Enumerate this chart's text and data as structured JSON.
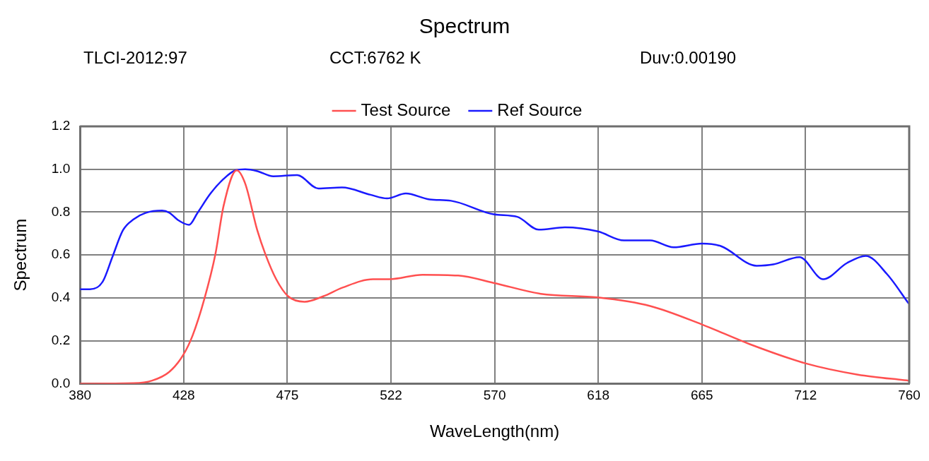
{
  "chart_data": {
    "type": "line",
    "title": "Spectrum",
    "annotations": [
      "TLCI-2012:97",
      "CCT:6762 K",
      "Duv:0.00190"
    ],
    "xlabel": "WaveLength(nm)",
    "ylabel": "Spectrum",
    "xlim": [
      380,
      760
    ],
    "xticks": [
      380,
      {
        "value": 427.5,
        "label": "428"
      },
      475,
      {
        "value": 522.5,
        "label": "522"
      },
      570,
      {
        "value": 617.5,
        "label": "618"
      },
      665,
      {
        "value": 712.5,
        "label": "712"
      },
      760
    ],
    "ylim": [
      0,
      1.2
    ],
    "yticks": [
      {
        "value": 0,
        "label": "0.0"
      },
      0.2,
      0.4,
      0.6,
      0.8,
      {
        "value": 1,
        "label": "1.0"
      },
      1.2
    ],
    "grid": true,
    "legend": "top",
    "series": [
      {
        "name": "Test Source",
        "color": "#ff5050",
        "x": [
          380,
          404.6,
          413,
          420.8,
          427.3,
          431.6,
          437,
          442,
          445.8,
          451.8,
          455.7,
          461.2,
          465,
          469.9,
          475.3,
          482.9,
          491.6,
          500.3,
          514.3,
          521.8,
          537,
          553.3,
          569.5,
          591.2,
          617.3,
          641.3,
          665,
          686.7,
          712.7,
          736.5,
          759.8
        ],
        "values": [
          0,
          0.002,
          0.014,
          0.054,
          0.134,
          0.225,
          0.396,
          0.602,
          0.83,
          0.995,
          0.933,
          0.716,
          0.602,
          0.487,
          0.408,
          0.382,
          0.408,
          0.448,
          0.487,
          0.487,
          0.508,
          0.504,
          0.47,
          0.419,
          0.402,
          0.362,
          0.276,
          0.185,
          0.094,
          0.042,
          0.014
        ]
      },
      {
        "name": "Ref Source",
        "color": "#1a1aff",
        "x": [
          380,
          384.5,
          390.4,
          394.8,
          399.7,
          404.6,
          410,
          417.6,
          420.8,
          425.2,
          430,
          433.8,
          439.8,
          445.8,
          451.2,
          455.7,
          461,
          468.6,
          479.5,
          489.2,
          500.1,
          513.1,
          520.7,
          529.3,
          540.2,
          550,
          569.5,
          580.4,
          590.2,
          602.2,
          617.3,
          629.3,
          641.3,
          652,
          665,
          673.8,
          690.1,
          697.7,
          709.7,
          720.6,
          731.4,
          740.1,
          749.9,
          759.8
        ],
        "values": [
          0.44,
          0.44,
          0.476,
          0.59,
          0.716,
          0.767,
          0.796,
          0.807,
          0.798,
          0.761,
          0.741,
          0.796,
          0.887,
          0.955,
          0.995,
          1,
          0.992,
          0.967,
          0.973,
          0.91,
          0.915,
          0.881,
          0.864,
          0.887,
          0.859,
          0.853,
          0.79,
          0.778,
          0.718,
          0.729,
          0.71,
          0.668,
          0.668,
          0.636,
          0.653,
          0.641,
          0.55,
          0.556,
          0.59,
          0.487,
          0.562,
          0.596,
          0.51,
          0.373
        ]
      }
    ]
  }
}
